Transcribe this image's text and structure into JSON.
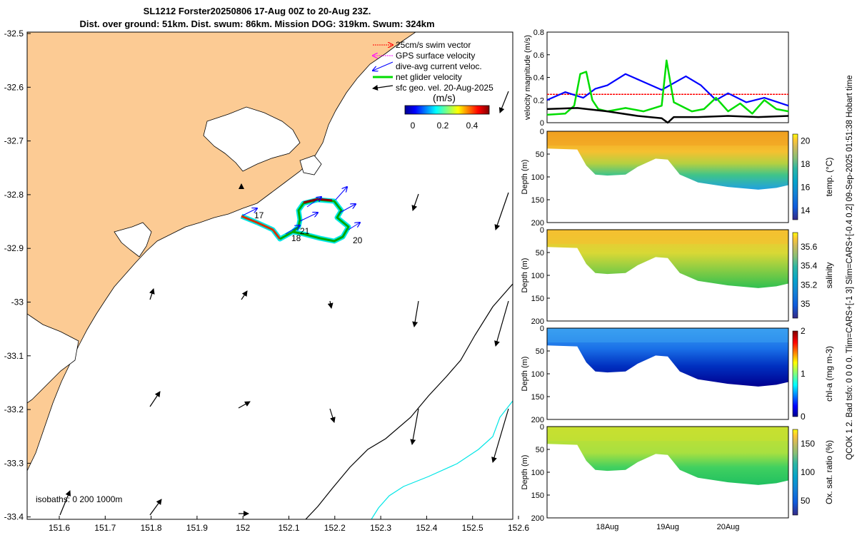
{
  "title": {
    "line1": "SL1212 Forster20250806 17-Aug 00Z to 20-Aug 23Z.",
    "line2": "Dist. over ground: 51km. Dist. swum: 86km. Mission DOG: 319km. Swum: 324km"
  },
  "side_info": "QCOK 1  2. Bad tsfo: 0  0  0  0. Tlim=CARS+[-1 3] Slim=CARS+[-0.4 0.2] 09-Sep-2025 01:51:38 Hobart time",
  "colors": {
    "land": "#FCCB94",
    "swim": "#ff0000",
    "gps": "#ff00ff",
    "dac": "#0000ff",
    "net": "#00dd00",
    "geo": "#000000",
    "isobath_200": "#000000",
    "isobath_1000": "#00e6e6"
  },
  "map": {
    "lon_ticks": [
      "151.6",
      "151.7",
      "151.8",
      "151.9",
      "152",
      "152.1",
      "152.2",
      "152.3",
      "152.4",
      "152.5",
      "152.6"
    ],
    "lat_ticks": [
      "-32.5",
      "-32.6",
      "-32.7",
      "-32.8",
      "-32.9",
      "-33",
      "-33.1",
      "-33.2",
      "-33.3",
      "-33.4"
    ],
    "legend": {
      "items": [
        "25cm/s swim vector",
        "GPS surface velocity",
        "dive-avg current veloc.",
        "net glider velocity",
        "sfc geo. vel. 20-Aug-2025"
      ],
      "colorbar_title": "(m/s)",
      "colorbar_ticks": [
        "0",
        "0.2",
        "0.4"
      ]
    },
    "isobath_label": "isobaths: 0   200  1000m",
    "day_labels": [
      "17",
      "18",
      "20",
      "21"
    ]
  },
  "chart_data": [
    {
      "type": "line",
      "title": "",
      "xlabel": "",
      "ylabel": "velocity magnitude (m/s)",
      "ylim": [
        0,
        0.8
      ],
      "yticks": [
        "0",
        "0.2",
        "0.4",
        "0.6",
        "0.8"
      ],
      "xlim": [
        17,
        21
      ],
      "series": [
        {
          "name": "swim",
          "x": [
            17.0,
            21.0
          ],
          "values": [
            0.25,
            0.25
          ]
        },
        {
          "name": "dac",
          "x": [
            17.0,
            17.3,
            17.6,
            17.8,
            18.0,
            18.3,
            18.6,
            18.9,
            19.1,
            19.3,
            19.55,
            19.8,
            20.0,
            20.3,
            20.6,
            21.0
          ],
          "values": [
            0.2,
            0.27,
            0.22,
            0.3,
            0.33,
            0.43,
            0.36,
            0.29,
            0.35,
            0.41,
            0.33,
            0.2,
            0.26,
            0.18,
            0.22,
            0.15
          ]
        },
        {
          "name": "net",
          "x": [
            17.0,
            17.3,
            17.45,
            17.55,
            17.65,
            17.75,
            17.85,
            18.0,
            18.3,
            18.6,
            18.9,
            18.98,
            19.1,
            19.4,
            19.6,
            19.8,
            20.0,
            20.2,
            20.4,
            20.6,
            20.8,
            21.0
          ],
          "values": [
            0.07,
            0.08,
            0.15,
            0.43,
            0.45,
            0.2,
            0.12,
            0.1,
            0.13,
            0.1,
            0.15,
            0.55,
            0.18,
            0.1,
            0.12,
            0.22,
            0.1,
            0.17,
            0.08,
            0.2,
            0.12,
            0.1
          ]
        },
        {
          "name": "geo",
          "x": [
            17.0,
            17.5,
            18.0,
            18.5,
            18.9,
            19.0,
            19.1,
            19.5,
            20.0,
            20.5,
            21.0
          ],
          "values": [
            0.12,
            0.13,
            0.1,
            0.06,
            0.04,
            0.0,
            0.05,
            0.05,
            0.06,
            0.05,
            0.06
          ]
        }
      ],
      "xticks": [
        "18Aug",
        "19Aug",
        "20Aug"
      ]
    },
    {
      "type": "heatmap",
      "title": "",
      "ylabel": "Depth (m)",
      "colorbar_label": "temp. (°C)",
      "color_range": [
        13.2,
        20.6
      ],
      "cbar_ticks": [
        "14",
        "16",
        "18",
        "20"
      ],
      "ylim": [
        200,
        0
      ],
      "yticks": [
        "0",
        "50",
        "100",
        "150",
        "200"
      ],
      "xticks": [
        "18Aug",
        "19Aug",
        "20Aug"
      ],
      "colormap": "parula"
    },
    {
      "type": "heatmap",
      "title": "",
      "ylabel": "Depth (m)",
      "colorbar_label": "salinity",
      "color_range": [
        34.85,
        35.75
      ],
      "cbar_ticks": [
        "35",
        "35.2",
        "35.4",
        "35.6"
      ],
      "ylim": [
        200,
        0
      ],
      "yticks": [
        "0",
        "50",
        "100",
        "150",
        "200"
      ],
      "xticks": [
        "18Aug",
        "19Aug",
        "20Aug"
      ],
      "colormap": "parula"
    },
    {
      "type": "heatmap",
      "title": "",
      "ylabel": "Depth (m)",
      "colorbar_label": "chl-a (mg m-3)",
      "color_range": [
        0,
        2
      ],
      "cbar_ticks": [
        "0",
        "1",
        "2"
      ],
      "ylim": [
        200,
        0
      ],
      "yticks": [
        "0",
        "50",
        "100",
        "150",
        "200"
      ],
      "xticks": [
        "18Aug",
        "19Aug",
        "20Aug"
      ],
      "colormap": "jet"
    },
    {
      "type": "heatmap",
      "title": "",
      "ylabel": "Depth (m)",
      "colorbar_label": "Ox. sat. ratio (%)",
      "color_range": [
        25,
        175
      ],
      "cbar_ticks": [
        "50",
        "100",
        "150"
      ],
      "ylim": [
        200,
        0
      ],
      "yticks": [
        "0",
        "50",
        "100",
        "150",
        "200"
      ],
      "xticks": [
        "18Aug",
        "19Aug",
        "20Aug"
      ],
      "colormap": "parula"
    }
  ]
}
